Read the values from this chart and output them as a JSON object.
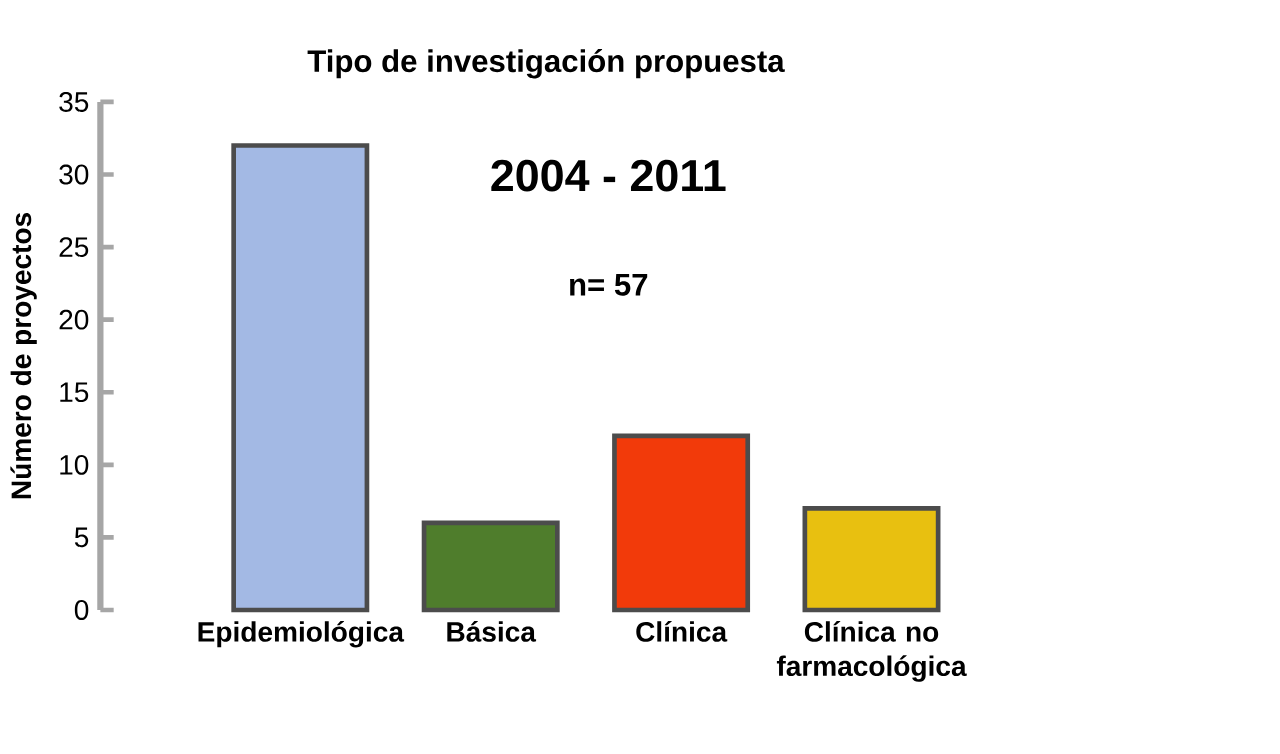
{
  "chart_data": {
    "type": "bar",
    "title": "Tipo de investigación  propuesta",
    "subtitle": "2004 - 2011",
    "ylabel": "Número de proyectos",
    "annotations": [
      "n= 57"
    ],
    "categories": [
      "Epidemiológica",
      "Básica",
      "Clínica",
      "Clínica no farmacológica"
    ],
    "values": [
      32,
      6,
      12,
      7
    ],
    "colors": [
      "#a3b9e4",
      "#4f7d2c",
      "#f23a0a",
      "#e8c010"
    ],
    "ylim": [
      0,
      35
    ],
    "yticks": [
      0,
      5,
      10,
      15,
      20,
      25,
      30,
      35
    ]
  }
}
